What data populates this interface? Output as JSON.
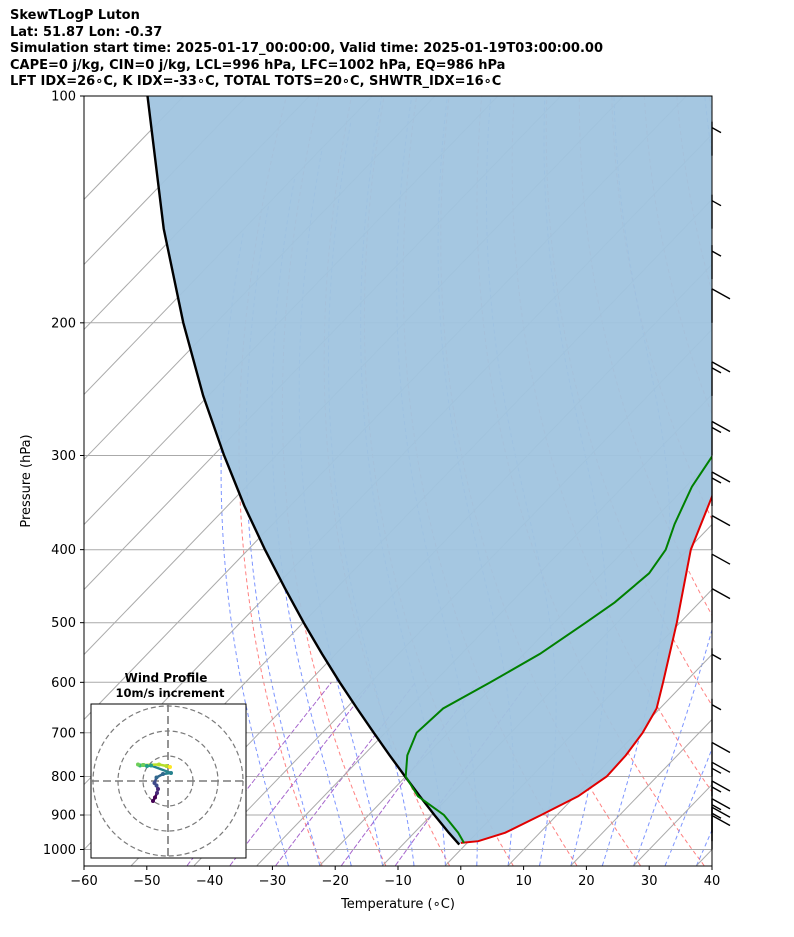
{
  "header": {
    "line1": "SkewTLogP Luton",
    "line2": "Lat: 51.87   Lon: -0.37",
    "line3": "Simulation start time: 2025-01-17_00:00:00, Valid time: 2025-01-19T03:00:00.00",
    "line4": "CAPE=0 j/kg, CIN=0 j/kg, LCL=996 hPa, LFC=1002 hPa, EQ=986 hPa",
    "line5": "LFT IDX=26∘C, K IDX=-33∘C, TOTAL TOTS=20∘C, SHWTR_IDX=16∘C"
  },
  "chart_data": [
    {
      "type": "line",
      "title": "SkewTLogP Luton",
      "xlabel": "Temperature (∘C)",
      "ylabel": "Pressure (hPa)",
      "x_ticks": [
        -60,
        -50,
        -40,
        -30,
        -20,
        -10,
        0,
        10,
        20,
        30,
        40
      ],
      "x_tick_labels": [
        "−60",
        "−50",
        "−40",
        "−30",
        "−20",
        "−10",
        "0",
        "10",
        "20",
        "30",
        "40"
      ],
      "y_ticks": [
        100,
        200,
        300,
        400,
        500,
        600,
        700,
        800,
        900,
        1000
      ],
      "xlim": [
        -60,
        40
      ],
      "ylim": [
        1050,
        100
      ],
      "y_scale": "log",
      "skew": true,
      "grid": true,
      "colors": {
        "temperature": "#e00000",
        "dewpoint": "#008000",
        "parcel": "#000000",
        "shade": "#a0c4df",
        "dry_adiabats": "#ff6060",
        "moist_adiabats": "#5070ff",
        "mixing_ratio": "#9040c0",
        "isotherms": "#aaaaaa",
        "barbs": "#000000"
      },
      "series": [
        {
          "name": "",
          "key": "temperature",
          "pressure": [
            980,
            975,
            950,
            900,
            850,
            800,
            750,
            700,
            650,
            600,
            500,
            400,
            300,
            250,
            220,
            200,
            180,
            160,
            140,
            130,
            120,
            110,
            100
          ],
          "temperature": [
            -1,
            1.5,
            4.5,
            7.5,
            10.5,
            12,
            11.8,
            11,
            9.5,
            6.5,
            -0.5,
            -9.5,
            -18,
            -23.5,
            -26,
            -26.5,
            -26.5,
            -27.5,
            -27,
            -30.5,
            -30,
            -29,
            -31
          ]
        },
        {
          "name": "",
          "key": "dewpoint",
          "pressure": [
            980,
            950,
            900,
            850,
            800,
            750,
            700,
            650,
            600,
            550,
            500,
            470,
            430,
            400,
            370,
            330,
            300,
            270,
            250,
            230,
            210,
            200,
            190,
            170,
            150,
            140,
            100
          ],
          "temperature": [
            -0.5,
            -3,
            -8,
            -15,
            -20,
            -23,
            -25,
            -24.5,
            -21,
            -17.5,
            -15,
            -13.5,
            -12.5,
            -13.5,
            -16,
            -19,
            -20.5,
            -21.5,
            -23.5,
            -25.5,
            -25.5,
            -24,
            -23.5,
            -24,
            -27.5,
            -29,
            -23.5
          ]
        },
        {
          "name": "",
          "key": "parcel",
          "pressure": [
            985,
            950,
            900,
            850,
            800,
            750,
            700,
            650,
            600,
            550,
            500,
            450,
            400,
            350,
            300,
            250,
            200,
            150,
            100
          ],
          "temperature": [
            -1,
            -4.5,
            -9.5,
            -14.7,
            -20.1,
            -25.8,
            -31.8,
            -38.2,
            -45,
            -52.2,
            -59.9,
            -68.2,
            -77.3,
            -87.3,
            -98.3,
            -110.8,
            -125.2,
            -142.8,
            -165.8
          ]
        }
      ],
      "wind_barbs": [
        {
          "pressure": 1000,
          "speed_kt": 10
        },
        {
          "pressure": 975,
          "speed_kt": 15
        },
        {
          "pressure": 950,
          "speed_kt": 15
        },
        {
          "pressure": 900,
          "speed_kt": 15
        },
        {
          "pressure": 850,
          "speed_kt": 15
        },
        {
          "pressure": 800,
          "speed_kt": 10
        },
        {
          "pressure": 700,
          "speed_kt": 5
        },
        {
          "pressure": 600,
          "speed_kt": 5
        },
        {
          "pressure": 500,
          "speed_kt": 10
        },
        {
          "pressure": 450,
          "speed_kt": 10
        },
        {
          "pressure": 400,
          "speed_kt": 10
        },
        {
          "pressure": 350,
          "speed_kt": 15
        },
        {
          "pressure": 300,
          "speed_kt": 15
        },
        {
          "pressure": 250,
          "speed_kt": 15
        },
        {
          "pressure": 200,
          "speed_kt": 10
        },
        {
          "pressure": 175,
          "speed_kt": 5
        },
        {
          "pressure": 150,
          "speed_kt": 5
        },
        {
          "pressure": 120,
          "speed_kt": 5
        }
      ]
    },
    {
      "type": "scatter",
      "title": "Wind Profile",
      "subtitle": "10m/s increment",
      "ring_count": 3,
      "ring_increment_ms": 10,
      "grid": true,
      "points_uv": [
        [
          -3,
          -4
        ],
        [
          -2.6,
          -3.3
        ],
        [
          -2.2,
          -2.4
        ],
        [
          -2,
          -1.6
        ],
        [
          -2.3,
          -0.9
        ],
        [
          -2.7,
          -0.4
        ],
        [
          -2.3,
          0.7
        ],
        [
          -1,
          1.4
        ],
        [
          0.6,
          1.6
        ],
        [
          -3.4,
          3.1
        ],
        [
          -4.2,
          3.0
        ],
        [
          -4.9,
          3.2
        ],
        [
          -5.6,
          3.1
        ],
        [
          -6.0,
          3.3
        ],
        [
          -5.0,
          3.2
        ],
        [
          -1.8,
          3.3
        ],
        [
          -0.3,
          3.0
        ],
        [
          0.4,
          2.8
        ]
      ]
    }
  ]
}
